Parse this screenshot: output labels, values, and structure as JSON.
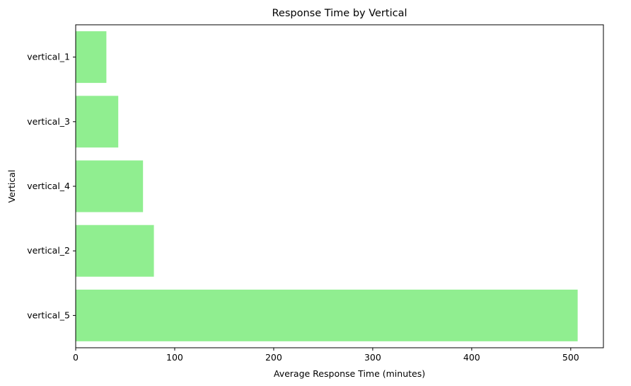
{
  "chart_data": {
    "type": "bar",
    "orientation": "horizontal",
    "title": "Response Time by Vertical",
    "xlabel": "Average Response Time (minutes)",
    "ylabel": "Vertical",
    "categories": [
      "vertical_1",
      "vertical_3",
      "vertical_4",
      "vertical_2",
      "vertical_5"
    ],
    "values": [
      31,
      43,
      68,
      79,
      507
    ],
    "xlim": [
      0,
      533
    ],
    "xticks": [
      0,
      100,
      200,
      300,
      400,
      500
    ],
    "grid": false,
    "bar_color": "#90ee90"
  }
}
